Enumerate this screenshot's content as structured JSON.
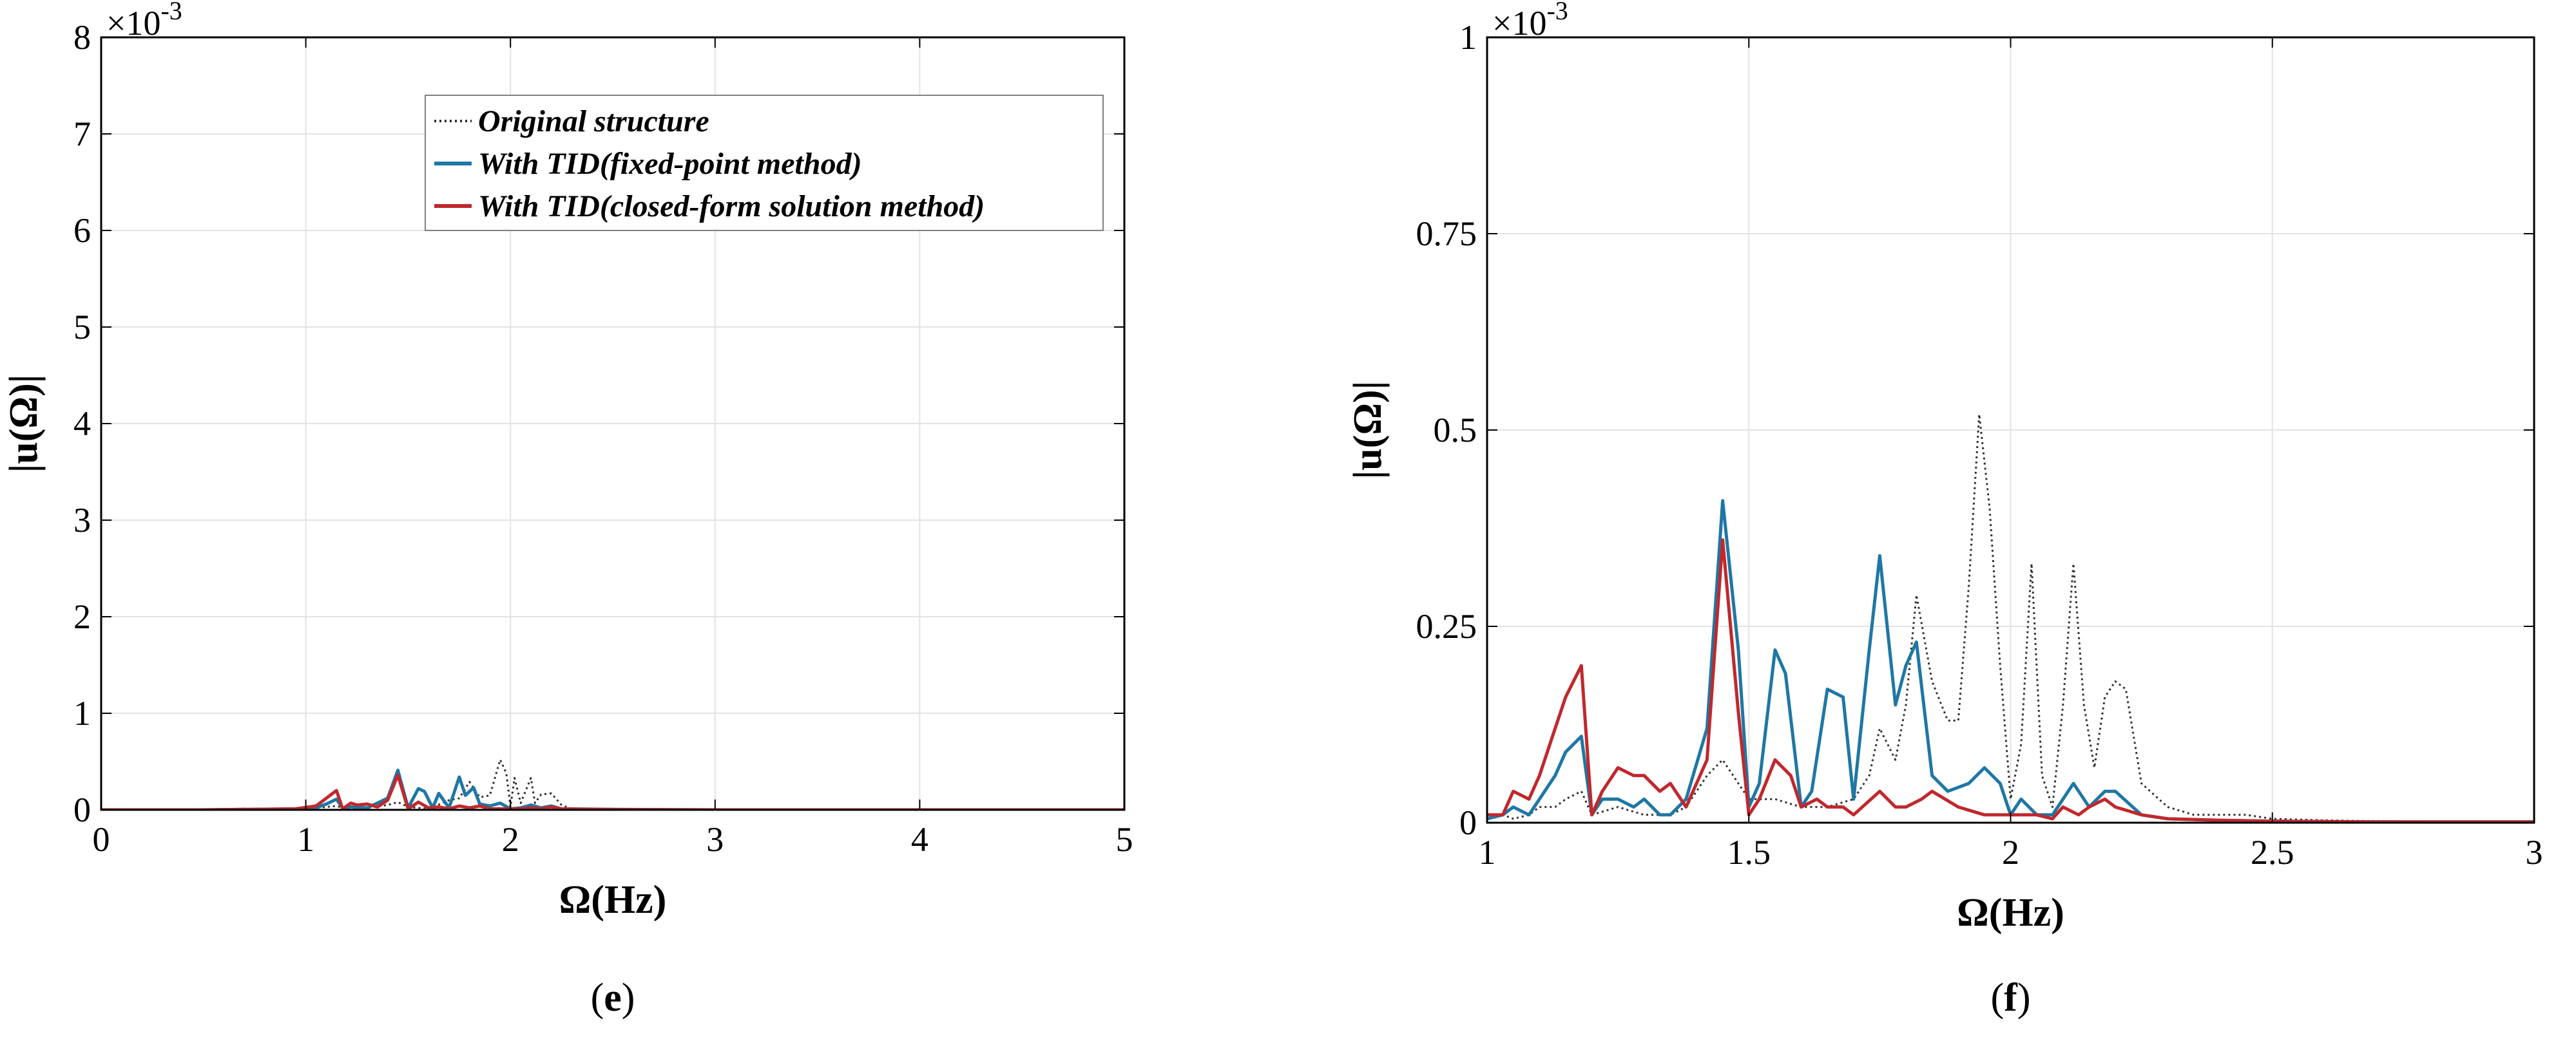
{
  "panels": {
    "e": {
      "caption_label": "e",
      "xlabel": "Ω(Hz)",
      "ylabel": "|u(Ω)|",
      "yexp": "×10",
      "yexp_power": "-3",
      "xticks": [
        "0",
        "1",
        "2",
        "3",
        "4",
        "5"
      ],
      "yticks": [
        "0",
        "1",
        "2",
        "3",
        "4",
        "5",
        "6",
        "7",
        "8"
      ]
    },
    "f": {
      "caption_label": "f",
      "xlabel": "Ω(Hz)",
      "ylabel": "|u(Ω)|",
      "yexp": "×10",
      "yexp_power": "-3",
      "xticks": [
        "1",
        "1.5",
        "2",
        "2.5",
        "3"
      ],
      "yticks": [
        "0",
        "0.25",
        "0.5",
        "0.75",
        "1"
      ]
    }
  },
  "legend": {
    "items": [
      "Original structure",
      "With TID(fixed-point method)",
      "With TID(closed-form solution method)"
    ]
  },
  "colors": {
    "original": "#303030",
    "fixed": "#1f77a4",
    "closed": "#c0282d"
  },
  "chart_data": [
    {
      "type": "line",
      "title": "",
      "xlabel": "Ω(Hz)",
      "ylabel": "|u(Ω)|",
      "y_scale_note": "×10^-3",
      "xlim": [
        0,
        5
      ],
      "ylim": [
        0,
        8
      ],
      "grid": true,
      "legend_position": "top-center",
      "series": [
        {
          "name": "Original structure",
          "style": "dotted",
          "x": [
            0,
            0.5,
            0.95,
            1.05,
            1.1,
            1.15,
            1.2,
            1.3,
            1.4,
            1.45,
            1.5,
            1.55,
            1.6,
            1.7,
            1.75,
            1.8,
            1.85,
            1.9,
            1.95,
            1.98,
            2.0,
            2.02,
            2.05,
            2.1,
            2.12,
            2.15,
            2.2,
            2.25,
            2.3,
            2.4,
            2.5,
            3,
            4,
            5
          ],
          "y": [
            0,
            0,
            0.01,
            0.02,
            0.03,
            0.04,
            0.01,
            0.02,
            0.05,
            0.08,
            0.03,
            0.02,
            0.01,
            0.1,
            0.12,
            0.29,
            0.13,
            0.15,
            0.52,
            0.38,
            0.03,
            0.33,
            0.07,
            0.33,
            0.07,
            0.16,
            0.17,
            0.05,
            0.01,
            0.01,
            0.005,
            0,
            0,
            0
          ]
        },
        {
          "name": "With TID(fixed-point method)",
          "style": "solid",
          "x": [
            0,
            0.5,
            0.95,
            1.05,
            1.1,
            1.15,
            1.18,
            1.22,
            1.3,
            1.4,
            1.45,
            1.5,
            1.55,
            1.58,
            1.62,
            1.65,
            1.7,
            1.75,
            1.78,
            1.82,
            1.85,
            1.9,
            1.95,
            2.0,
            2.05,
            2.1,
            2.15,
            2.2,
            2.25,
            2.5,
            3,
            4,
            5
          ],
          "y": [
            0,
            0,
            0.01,
            0.02,
            0.06,
            0.11,
            0.02,
            0.03,
            0.02,
            0.12,
            0.41,
            0.02,
            0.22,
            0.19,
            0.02,
            0.17,
            0.02,
            0.34,
            0.15,
            0.23,
            0.06,
            0.04,
            0.07,
            0.01,
            0.02,
            0.05,
            0.02,
            0.04,
            0.01,
            0.005,
            0,
            0,
            0
          ]
        },
        {
          "name": "With TID(closed-form solution method)",
          "style": "solid",
          "x": [
            0,
            0.5,
            0.95,
            1.05,
            1.1,
            1.15,
            1.18,
            1.22,
            1.25,
            1.3,
            1.35,
            1.4,
            1.45,
            1.5,
            1.55,
            1.6,
            1.65,
            1.7,
            1.75,
            1.8,
            1.85,
            1.9,
            2.0,
            2.05,
            2.1,
            2.15,
            2.2,
            2.25,
            2.5,
            3,
            4,
            5
          ],
          "y": [
            0,
            0,
            0.01,
            0.04,
            0.12,
            0.2,
            0.01,
            0.07,
            0.05,
            0.06,
            0.03,
            0.1,
            0.36,
            0.01,
            0.08,
            0.02,
            0.03,
            0.01,
            0.04,
            0.02,
            0.04,
            0.01,
            0.01,
            0.01,
            0.02,
            0.01,
            0.03,
            0.01,
            0.003,
            0,
            0,
            0
          ]
        }
      ]
    },
    {
      "type": "line",
      "title": "",
      "xlabel": "Ω(Hz)",
      "ylabel": "|u(Ω)|",
      "y_scale_note": "×10^-3",
      "xlim": [
        1,
        3
      ],
      "ylim": [
        0,
        1
      ],
      "grid": true,
      "series": [
        {
          "name": "Original structure",
          "style": "dotted",
          "x": [
            1.0,
            1.03,
            1.05,
            1.08,
            1.1,
            1.13,
            1.15,
            1.18,
            1.2,
            1.25,
            1.3,
            1.35,
            1.38,
            1.42,
            1.45,
            1.48,
            1.5,
            1.55,
            1.6,
            1.65,
            1.7,
            1.73,
            1.75,
            1.78,
            1.8,
            1.82,
            1.85,
            1.88,
            1.9,
            1.92,
            1.94,
            1.96,
            1.98,
            2.0,
            2.02,
            2.04,
            2.06,
            2.08,
            2.1,
            2.12,
            2.14,
            2.16,
            2.18,
            2.2,
            2.22,
            2.25,
            2.3,
            2.35,
            2.4,
            2.45,
            2.5,
            2.6,
            2.7,
            3.0
          ],
          "y": [
            0.005,
            0.01,
            0.005,
            0.01,
            0.02,
            0.02,
            0.03,
            0.04,
            0.01,
            0.02,
            0.01,
            0.01,
            0.02,
            0.06,
            0.08,
            0.05,
            0.03,
            0.03,
            0.02,
            0.02,
            0.03,
            0.06,
            0.12,
            0.08,
            0.15,
            0.29,
            0.18,
            0.13,
            0.13,
            0.3,
            0.52,
            0.4,
            0.2,
            0.03,
            0.1,
            0.33,
            0.06,
            0.02,
            0.15,
            0.33,
            0.15,
            0.07,
            0.16,
            0.18,
            0.17,
            0.05,
            0.02,
            0.01,
            0.01,
            0.01,
            0.005,
            0.003,
            0.002,
            0.001
          ]
        },
        {
          "name": "With TID(fixed-point method)",
          "style": "solid",
          "x": [
            1.0,
            1.03,
            1.05,
            1.08,
            1.1,
            1.13,
            1.15,
            1.18,
            1.2,
            1.22,
            1.25,
            1.28,
            1.3,
            1.33,
            1.35,
            1.38,
            1.42,
            1.45,
            1.48,
            1.5,
            1.52,
            1.55,
            1.57,
            1.6,
            1.62,
            1.65,
            1.68,
            1.7,
            1.73,
            1.75,
            1.78,
            1.8,
            1.82,
            1.85,
            1.88,
            1.92,
            1.95,
            1.98,
            2.0,
            2.02,
            2.05,
            2.08,
            2.1,
            2.12,
            2.15,
            2.18,
            2.2,
            2.25,
            2.3,
            2.4,
            2.5,
            2.7,
            3.0
          ],
          "y": [
            0.005,
            0.01,
            0.02,
            0.01,
            0.03,
            0.06,
            0.09,
            0.11,
            0.01,
            0.03,
            0.03,
            0.02,
            0.03,
            0.01,
            0.01,
            0.03,
            0.12,
            0.41,
            0.22,
            0.02,
            0.05,
            0.22,
            0.19,
            0.02,
            0.04,
            0.17,
            0.16,
            0.03,
            0.22,
            0.34,
            0.15,
            0.2,
            0.23,
            0.06,
            0.04,
            0.05,
            0.07,
            0.05,
            0.01,
            0.03,
            0.01,
            0.01,
            0.03,
            0.05,
            0.02,
            0.04,
            0.04,
            0.01,
            0.005,
            0.003,
            0.002,
            0.001,
            0.001
          ]
        },
        {
          "name": "With TID(closed-form solution method)",
          "style": "solid",
          "x": [
            1.0,
            1.03,
            1.05,
            1.08,
            1.1,
            1.13,
            1.15,
            1.18,
            1.2,
            1.22,
            1.25,
            1.28,
            1.3,
            1.33,
            1.35,
            1.38,
            1.42,
            1.45,
            1.48,
            1.5,
            1.52,
            1.55,
            1.58,
            1.6,
            1.63,
            1.65,
            1.68,
            1.7,
            1.75,
            1.78,
            1.8,
            1.83,
            1.85,
            1.9,
            1.95,
            2.0,
            2.05,
            2.08,
            2.1,
            2.13,
            2.15,
            2.18,
            2.2,
            2.25,
            2.3,
            2.4,
            2.5,
            2.7,
            3.0
          ],
          "y": [
            0.01,
            0.01,
            0.04,
            0.03,
            0.06,
            0.12,
            0.16,
            0.2,
            0.01,
            0.04,
            0.07,
            0.06,
            0.06,
            0.04,
            0.05,
            0.02,
            0.08,
            0.36,
            0.14,
            0.01,
            0.03,
            0.08,
            0.06,
            0.02,
            0.03,
            0.02,
            0.02,
            0.01,
            0.04,
            0.02,
            0.02,
            0.03,
            0.04,
            0.02,
            0.01,
            0.01,
            0.01,
            0.005,
            0.02,
            0.01,
            0.02,
            0.03,
            0.02,
            0.01,
            0.005,
            0.003,
            0.002,
            0.001,
            0.001
          ]
        }
      ]
    }
  ]
}
